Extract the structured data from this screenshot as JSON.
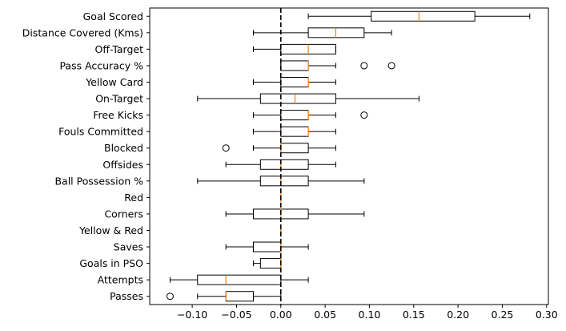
{
  "chart_data": {
    "type": "boxplot",
    "orientation": "horizontal",
    "title": "",
    "xlabel": "",
    "ylabel": "",
    "xlim": [
      -0.148,
      0.302
    ],
    "xticks": [
      -0.1,
      -0.05,
      0.0,
      0.05,
      0.1,
      0.15,
      0.2,
      0.25,
      0.3
    ],
    "xtick_labels": [
      "−0.10",
      "−0.05",
      "0.00",
      "0.05",
      "0.10",
      "0.15",
      "0.20",
      "0.25",
      "0.30"
    ],
    "reference_line": {
      "x": 0.0,
      "style": "dashed",
      "color": "#000000"
    },
    "grid": false,
    "colors": {
      "box": "#000000",
      "median": "#ff7f0e",
      "flier": "#000000"
    },
    "categories": [
      "Goal Scored",
      "Distance Covered (Kms)",
      "Off-Target",
      "Pass Accuracy %",
      "Yellow Card",
      "On-Target",
      "Free Kicks",
      "Fouls Committed",
      "Blocked",
      "Offsides",
      "Ball Possession %",
      "Red",
      "Corners",
      "Yellow & Red",
      "Saves",
      "Goals in PSO",
      "Attempts",
      "Passes"
    ],
    "boxes": [
      {
        "whislo": 0.031,
        "q1": 0.102,
        "med": 0.156,
        "q3": 0.219,
        "whishi": 0.281,
        "fliers": []
      },
      {
        "whislo": -0.031,
        "q1": 0.031,
        "med": 0.062,
        "q3": 0.094,
        "whishi": 0.125,
        "fliers": []
      },
      {
        "whislo": -0.031,
        "q1": 0.0,
        "med": 0.031,
        "q3": 0.062,
        "whishi": 0.062,
        "fliers": []
      },
      {
        "whislo": 0.0,
        "q1": 0.0,
        "med": 0.031,
        "q3": 0.031,
        "whishi": 0.062,
        "fliers": [
          0.094,
          0.125
        ]
      },
      {
        "whislo": -0.031,
        "q1": 0.0,
        "med": 0.031,
        "q3": 0.031,
        "whishi": 0.062,
        "fliers": []
      },
      {
        "whislo": -0.094,
        "q1": -0.023,
        "med": 0.016,
        "q3": 0.062,
        "whishi": 0.156,
        "fliers": []
      },
      {
        "whislo": -0.031,
        "q1": 0.0,
        "med": 0.031,
        "q3": 0.031,
        "whishi": 0.062,
        "fliers": [
          0.094
        ]
      },
      {
        "whislo": -0.031,
        "q1": 0.0,
        "med": 0.031,
        "q3": 0.031,
        "whishi": 0.062,
        "fliers": []
      },
      {
        "whislo": -0.031,
        "q1": 0.0,
        "med": 0.0,
        "q3": 0.031,
        "whishi": 0.062,
        "fliers": [
          -0.062
        ]
      },
      {
        "whislo": -0.062,
        "q1": -0.023,
        "med": 0.0,
        "q3": 0.031,
        "whishi": 0.062,
        "fliers": []
      },
      {
        "whislo": -0.094,
        "q1": -0.023,
        "med": 0.0,
        "q3": 0.031,
        "whishi": 0.094,
        "fliers": []
      },
      {
        "whislo": 0.0,
        "q1": 0.0,
        "med": 0.0,
        "q3": 0.0,
        "whishi": 0.0,
        "fliers": []
      },
      {
        "whislo": -0.062,
        "q1": -0.031,
        "med": 0.0,
        "q3": 0.031,
        "whishi": 0.094,
        "fliers": []
      },
      {
        "whislo": 0.0,
        "q1": 0.0,
        "med": 0.0,
        "q3": 0.0,
        "whishi": 0.0,
        "fliers": []
      },
      {
        "whislo": -0.062,
        "q1": -0.031,
        "med": 0.0,
        "q3": 0.0,
        "whishi": 0.031,
        "fliers": []
      },
      {
        "whislo": -0.031,
        "q1": -0.023,
        "med": 0.0,
        "q3": 0.0,
        "whishi": 0.0,
        "fliers": []
      },
      {
        "whislo": -0.125,
        "q1": -0.094,
        "med": -0.062,
        "q3": 0.0,
        "whishi": 0.031,
        "fliers": []
      },
      {
        "whislo": -0.094,
        "q1": -0.062,
        "med": -0.062,
        "q3": -0.031,
        "whishi": 0.0,
        "fliers": [
          -0.125
        ]
      }
    ]
  }
}
